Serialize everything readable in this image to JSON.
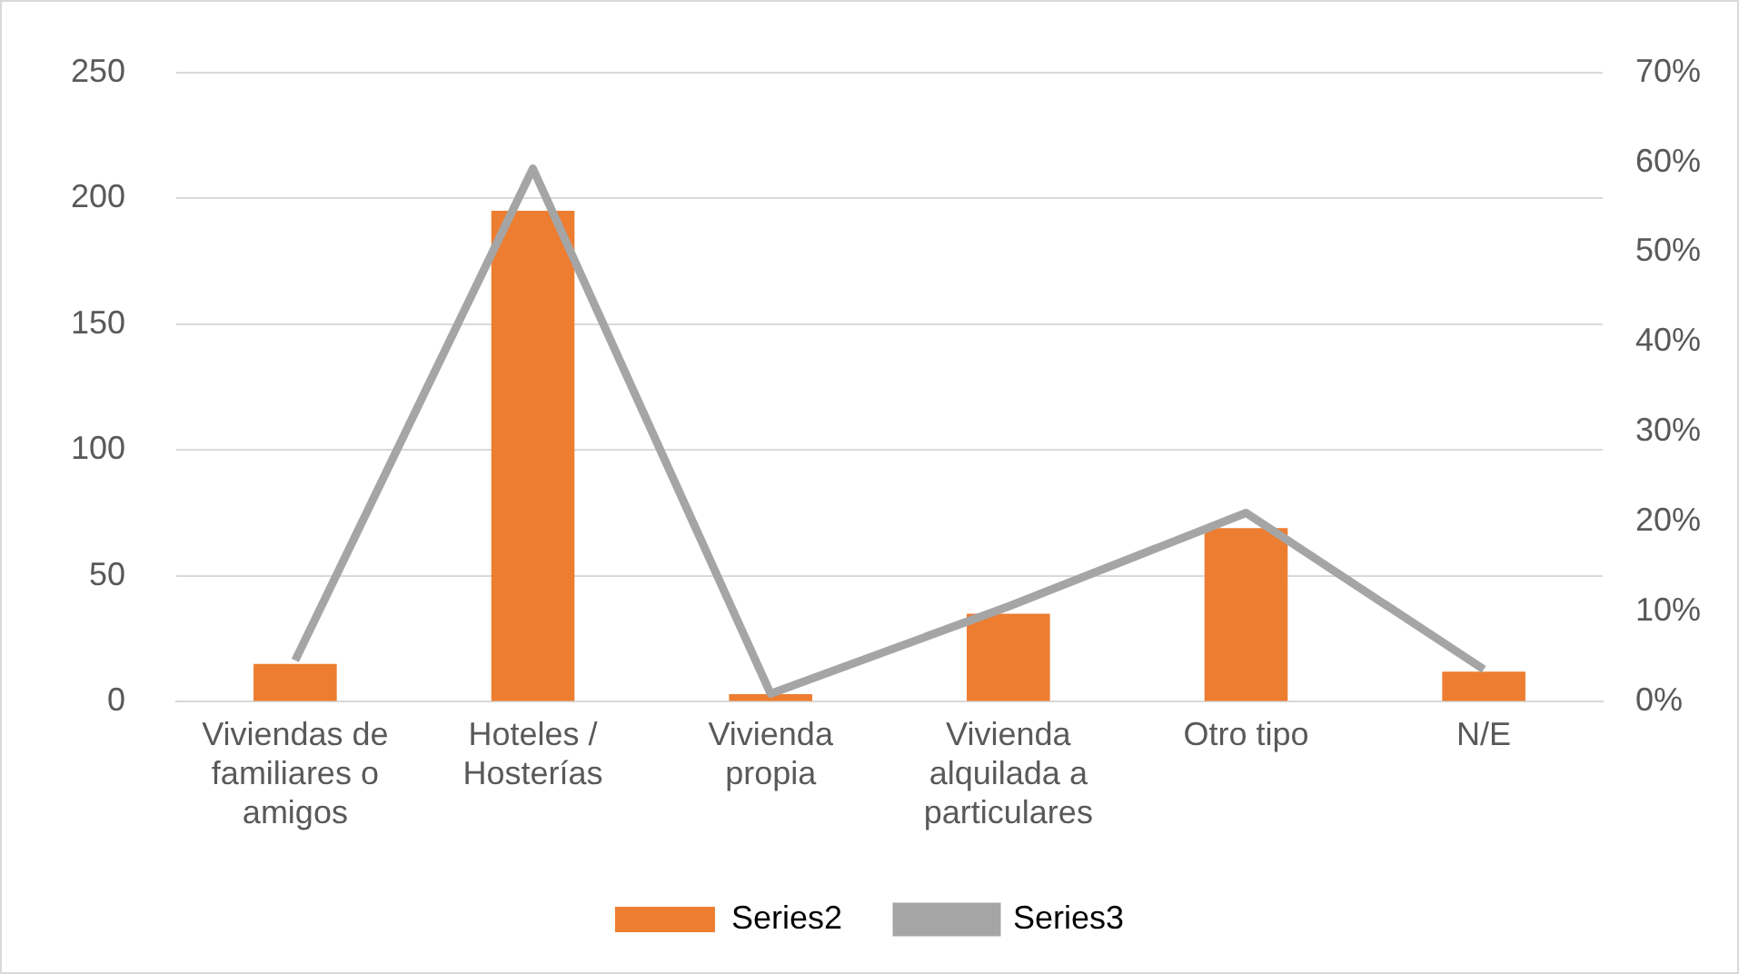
{
  "chart_data": {
    "type": "bar",
    "categories": [
      "Viviendas de familiares o amigos",
      "Hoteles / Hosterías",
      "Vivienda propia",
      "Vivienda alquilada a particulares",
      "Otro tipo",
      "N/E"
    ],
    "series": [
      {
        "name": "Series2",
        "color": "#ed7d31",
        "values": [
          15,
          195,
          3,
          35,
          69,
          12
        ]
      },
      {
        "name": "Series3",
        "type": "line",
        "axis": "y2",
        "color": "#a5a5a5",
        "values": [
          4.6,
          59.3,
          0.9,
          10.6,
          21.0,
          3.6
        ]
      }
    ],
    "ylim": [
      0,
      250
    ],
    "yticks": [
      0,
      50,
      100,
      150,
      200,
      250
    ],
    "y2lim": [
      0,
      70
    ],
    "y2ticks": [
      {
        "value": 0,
        "label": "0%"
      },
      {
        "value": 10,
        "label": "10%"
      },
      {
        "value": 20,
        "label": "20%"
      },
      {
        "value": 30,
        "label": "30%"
      },
      {
        "value": 40,
        "label": "40%"
      },
      {
        "value": 50,
        "label": "50%"
      },
      {
        "value": 60,
        "label": "60%"
      },
      {
        "value": 70,
        "label": "70%"
      }
    ],
    "grid": "y",
    "legend": "bottom",
    "marker": "none",
    "line_style": "solid"
  }
}
